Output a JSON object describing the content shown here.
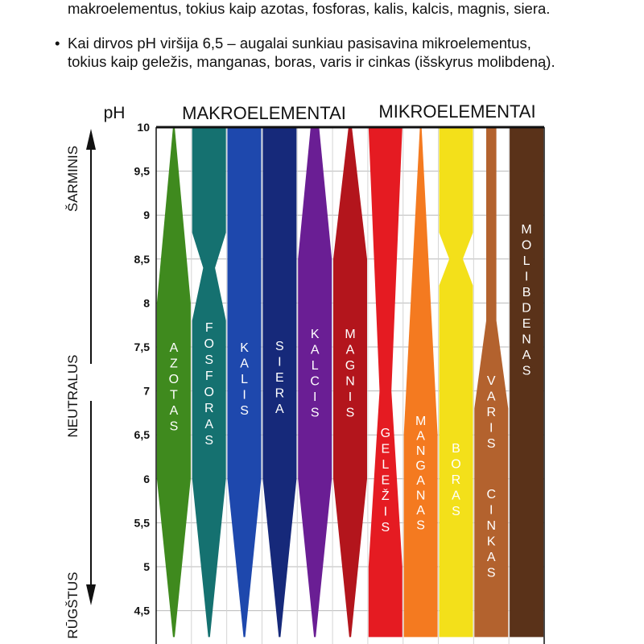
{
  "intro": {
    "line1": "makroelementus, tokius kaip azotas, fosforas, kalis, kalcis, magnis, siera.",
    "bullet2_line1": "Kai dirvos pH viršija 6,5 – augalai sunkiau pasisavina mikroelementus,",
    "bullet2_line2": "tokius kaip geležis, manganas, boras, varis ir cinkas (išskyrus molibdeną).",
    "bullet_symbol": "•"
  },
  "chart_data": {
    "type": "area",
    "ylabel": "pH",
    "yticks": [
      "10",
      "9,5",
      "9",
      "8,5",
      "8",
      "7,5",
      "7",
      "6,5",
      "6",
      "5,5",
      "5",
      "4,5"
    ],
    "ytick_values": [
      10,
      9.5,
      9,
      8.5,
      8,
      7.5,
      7,
      6.5,
      6,
      5.5,
      5,
      4.5
    ],
    "ylim": [
      4.2,
      10
    ],
    "group_labels": [
      "MAKROELEMENTAI",
      "MIKROELEMENTAI"
    ],
    "side_labels": {
      "top": "ŠARMINIS",
      "middle": "NEUTRALUS",
      "bottom": "RŪGŠTUS"
    },
    "series": [
      {
        "name": "AZOTAS",
        "color": "#3f8a1e",
        "label_lines": [
          "AZOTAS"
        ],
        "profile": [
          [
            10,
            0.05
          ],
          [
            8,
            1
          ],
          [
            6,
            1
          ],
          [
            4.2,
            0.05
          ]
        ]
      },
      {
        "name": "FOSFORAS",
        "color": "#157170",
        "label_lines": [
          "FOSFORAS"
        ],
        "profile": [
          [
            10,
            1
          ],
          [
            8.8,
            1
          ],
          [
            8.4,
            0.35
          ],
          [
            7.8,
            1
          ],
          [
            6,
            1
          ],
          [
            4.2,
            0.05
          ]
        ]
      },
      {
        "name": "KALIS",
        "color": "#1e48ad",
        "label_lines": [
          "KALIS"
        ],
        "profile": [
          [
            10,
            1
          ],
          [
            6,
            1
          ],
          [
            4.2,
            0.05
          ]
        ]
      },
      {
        "name": "SIERA",
        "color": "#16297a",
        "label_lines": [
          "SIERA"
        ],
        "profile": [
          [
            10,
            1
          ],
          [
            6,
            1
          ],
          [
            4.2,
            0.05
          ]
        ]
      },
      {
        "name": "KALCIS",
        "color": "#6a1e94",
        "label_lines": [
          "KALCIS"
        ],
        "profile": [
          [
            10,
            0.25
          ],
          [
            8.5,
            1
          ],
          [
            6,
            1
          ],
          [
            4.2,
            0.05
          ]
        ]
      },
      {
        "name": "MAGNIS",
        "color": "#b3151c",
        "label_lines": [
          "MAGNIS"
        ],
        "profile": [
          [
            10,
            0.1
          ],
          [
            8.5,
            1
          ],
          [
            6,
            1
          ],
          [
            4.2,
            0.05
          ]
        ]
      },
      {
        "name": "GELEŽIS",
        "color": "#e51b22",
        "label_lines": [
          "GELEŽIS"
        ],
        "profile": [
          [
            10,
            1
          ],
          [
            7,
            0.35
          ],
          [
            5,
            1
          ],
          [
            4.2,
            1
          ]
        ]
      },
      {
        "name": "MANGANAS",
        "color": "#f47a20",
        "label_lines": [
          "MANGANAS"
        ],
        "profile": [
          [
            10,
            0.05
          ],
          [
            6.5,
            1
          ],
          [
            4.2,
            1
          ]
        ]
      },
      {
        "name": "BORAS",
        "color": "#f3e01a",
        "label_lines": [
          "BORAS"
        ],
        "profile": [
          [
            10,
            1
          ],
          [
            8.8,
            1
          ],
          [
            8.5,
            0.4
          ],
          [
            8.2,
            1
          ],
          [
            4.2,
            1
          ]
        ]
      },
      {
        "name": "VARIS CINKAS",
        "color": "#b3622e",
        "label_lines": [
          "VARIS",
          "CINKAS"
        ],
        "profile": [
          [
            10,
            0.3
          ],
          [
            7.8,
            0.3
          ],
          [
            6.8,
            1
          ],
          [
            4.2,
            1
          ]
        ]
      },
      {
        "name": "MOLIBDENAS",
        "color": "#5a3219",
        "label_lines": [
          "MOLIBDENAS"
        ],
        "profile": [
          [
            10,
            1
          ],
          [
            4.2,
            1
          ]
        ]
      }
    ]
  }
}
